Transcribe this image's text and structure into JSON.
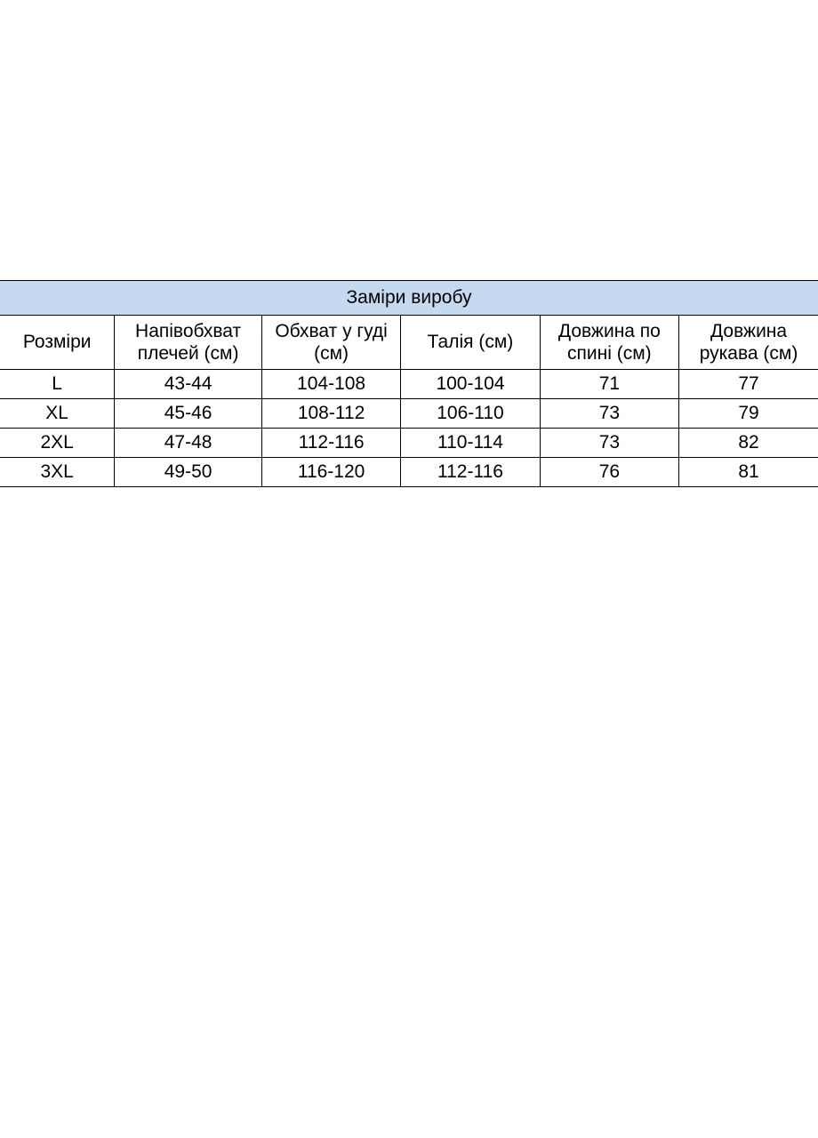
{
  "table": {
    "type": "table",
    "title": "Заміри виробу",
    "title_bg": "#c5d9f1",
    "border_color": "#000000",
    "background_color": "#ffffff",
    "font_family": "Arial",
    "title_fontsize": 21,
    "header_fontsize": 21,
    "cell_fontsize": 21,
    "columns": [
      "Розміри",
      "Напівобхват плечей (см)",
      "Обхват у гуді (см)",
      "Талія (см)",
      "Довжина по спині (см)",
      "Довжина рукава (см)"
    ],
    "col_widths_pct": [
      14,
      18,
      17,
      17,
      17,
      17
    ],
    "rows": [
      [
        "L",
        "43-44",
        "104-108",
        "100-104",
        "71",
        "77"
      ],
      [
        "XL",
        "45-46",
        "108-112",
        "106-110",
        "73",
        "79"
      ],
      [
        "2XL",
        "47-48",
        "112-116",
        "110-114",
        "73",
        "82"
      ],
      [
        "3XL",
        "49-50",
        "116-120",
        "112-116",
        "76",
        "81"
      ]
    ]
  }
}
